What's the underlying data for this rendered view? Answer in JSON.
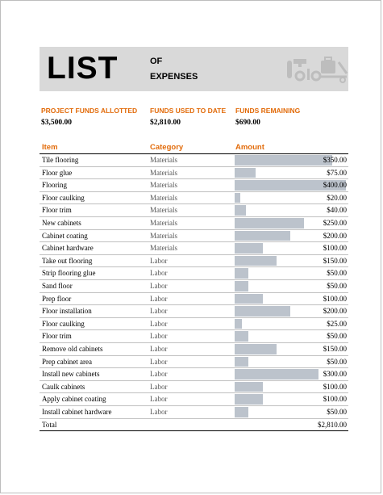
{
  "banner": {
    "title": "LIST",
    "sub1": "OF",
    "sub2": "EXPENSES"
  },
  "funds": [
    {
      "label": "PROJECT FUNDS ALLOTTED",
      "value": "$3,500.00"
    },
    {
      "label": "FUNDS USED TO DATE",
      "value": "$2,810.00"
    },
    {
      "label": "FUNDS REMAINING",
      "value": "$690.00"
    }
  ],
  "table": {
    "headers": {
      "item": "Item",
      "category": "Category",
      "amount": "Amount"
    },
    "max_amount": 400,
    "rows": [
      {
        "item": "Tile flooring",
        "category": "Materials",
        "amount": "$350.00",
        "value": 350
      },
      {
        "item": "Floor glue",
        "category": "Materials",
        "amount": "$75.00",
        "value": 75
      },
      {
        "item": "Flooring",
        "category": "Materials",
        "amount": "$400.00",
        "value": 400
      },
      {
        "item": "Floor caulking",
        "category": "Materials",
        "amount": "$20.00",
        "value": 20
      },
      {
        "item": "Floor trim",
        "category": "Materials",
        "amount": "$40.00",
        "value": 40
      },
      {
        "item": "New cabinets",
        "category": "Materials",
        "amount": "$250.00",
        "value": 250
      },
      {
        "item": "Cabinet coating",
        "category": "Materials",
        "amount": "$200.00",
        "value": 200
      },
      {
        "item": "Cabinet hardware",
        "category": "Materials",
        "amount": "$100.00",
        "value": 100
      },
      {
        "item": "Take out flooring",
        "category": "Labor",
        "amount": "$150.00",
        "value": 150
      },
      {
        "item": "Strip flooring glue",
        "category": "Labor",
        "amount": "$50.00",
        "value": 50
      },
      {
        "item": "Sand floor",
        "category": "Labor",
        "amount": "$50.00",
        "value": 50
      },
      {
        "item": "Prep floor",
        "category": "Labor",
        "amount": "$100.00",
        "value": 100
      },
      {
        "item": "Floor installation",
        "category": "Labor",
        "amount": "$200.00",
        "value": 200
      },
      {
        "item": "Floor caulking",
        "category": "Labor",
        "amount": "$25.00",
        "value": 25
      },
      {
        "item": "Floor trim",
        "category": "Labor",
        "amount": "$50.00",
        "value": 50
      },
      {
        "item": "Remove old cabinets",
        "category": "Labor",
        "amount": "$150.00",
        "value": 150
      },
      {
        "item": "Prep cabinet area",
        "category": "Labor",
        "amount": "$50.00",
        "value": 50
      },
      {
        "item": "Install new cabinets",
        "category": "Labor",
        "amount": "$300.00",
        "value": 300
      },
      {
        "item": "Caulk cabinets",
        "category": "Labor",
        "amount": "$100.00",
        "value": 100
      },
      {
        "item": "Apply cabinet coating",
        "category": "Labor",
        "amount": "$100.00",
        "value": 100
      },
      {
        "item": "Install cabinet hardware",
        "category": "Labor",
        "amount": "$50.00",
        "value": 50
      }
    ],
    "total": {
      "label": "Total",
      "amount": "$2,810.00"
    }
  },
  "colors": {
    "accent": "#e26b0a",
    "banner_bg": "#d9d9d9",
    "bar": "#bcc3cc"
  },
  "icons": [
    "tools-icon"
  ]
}
